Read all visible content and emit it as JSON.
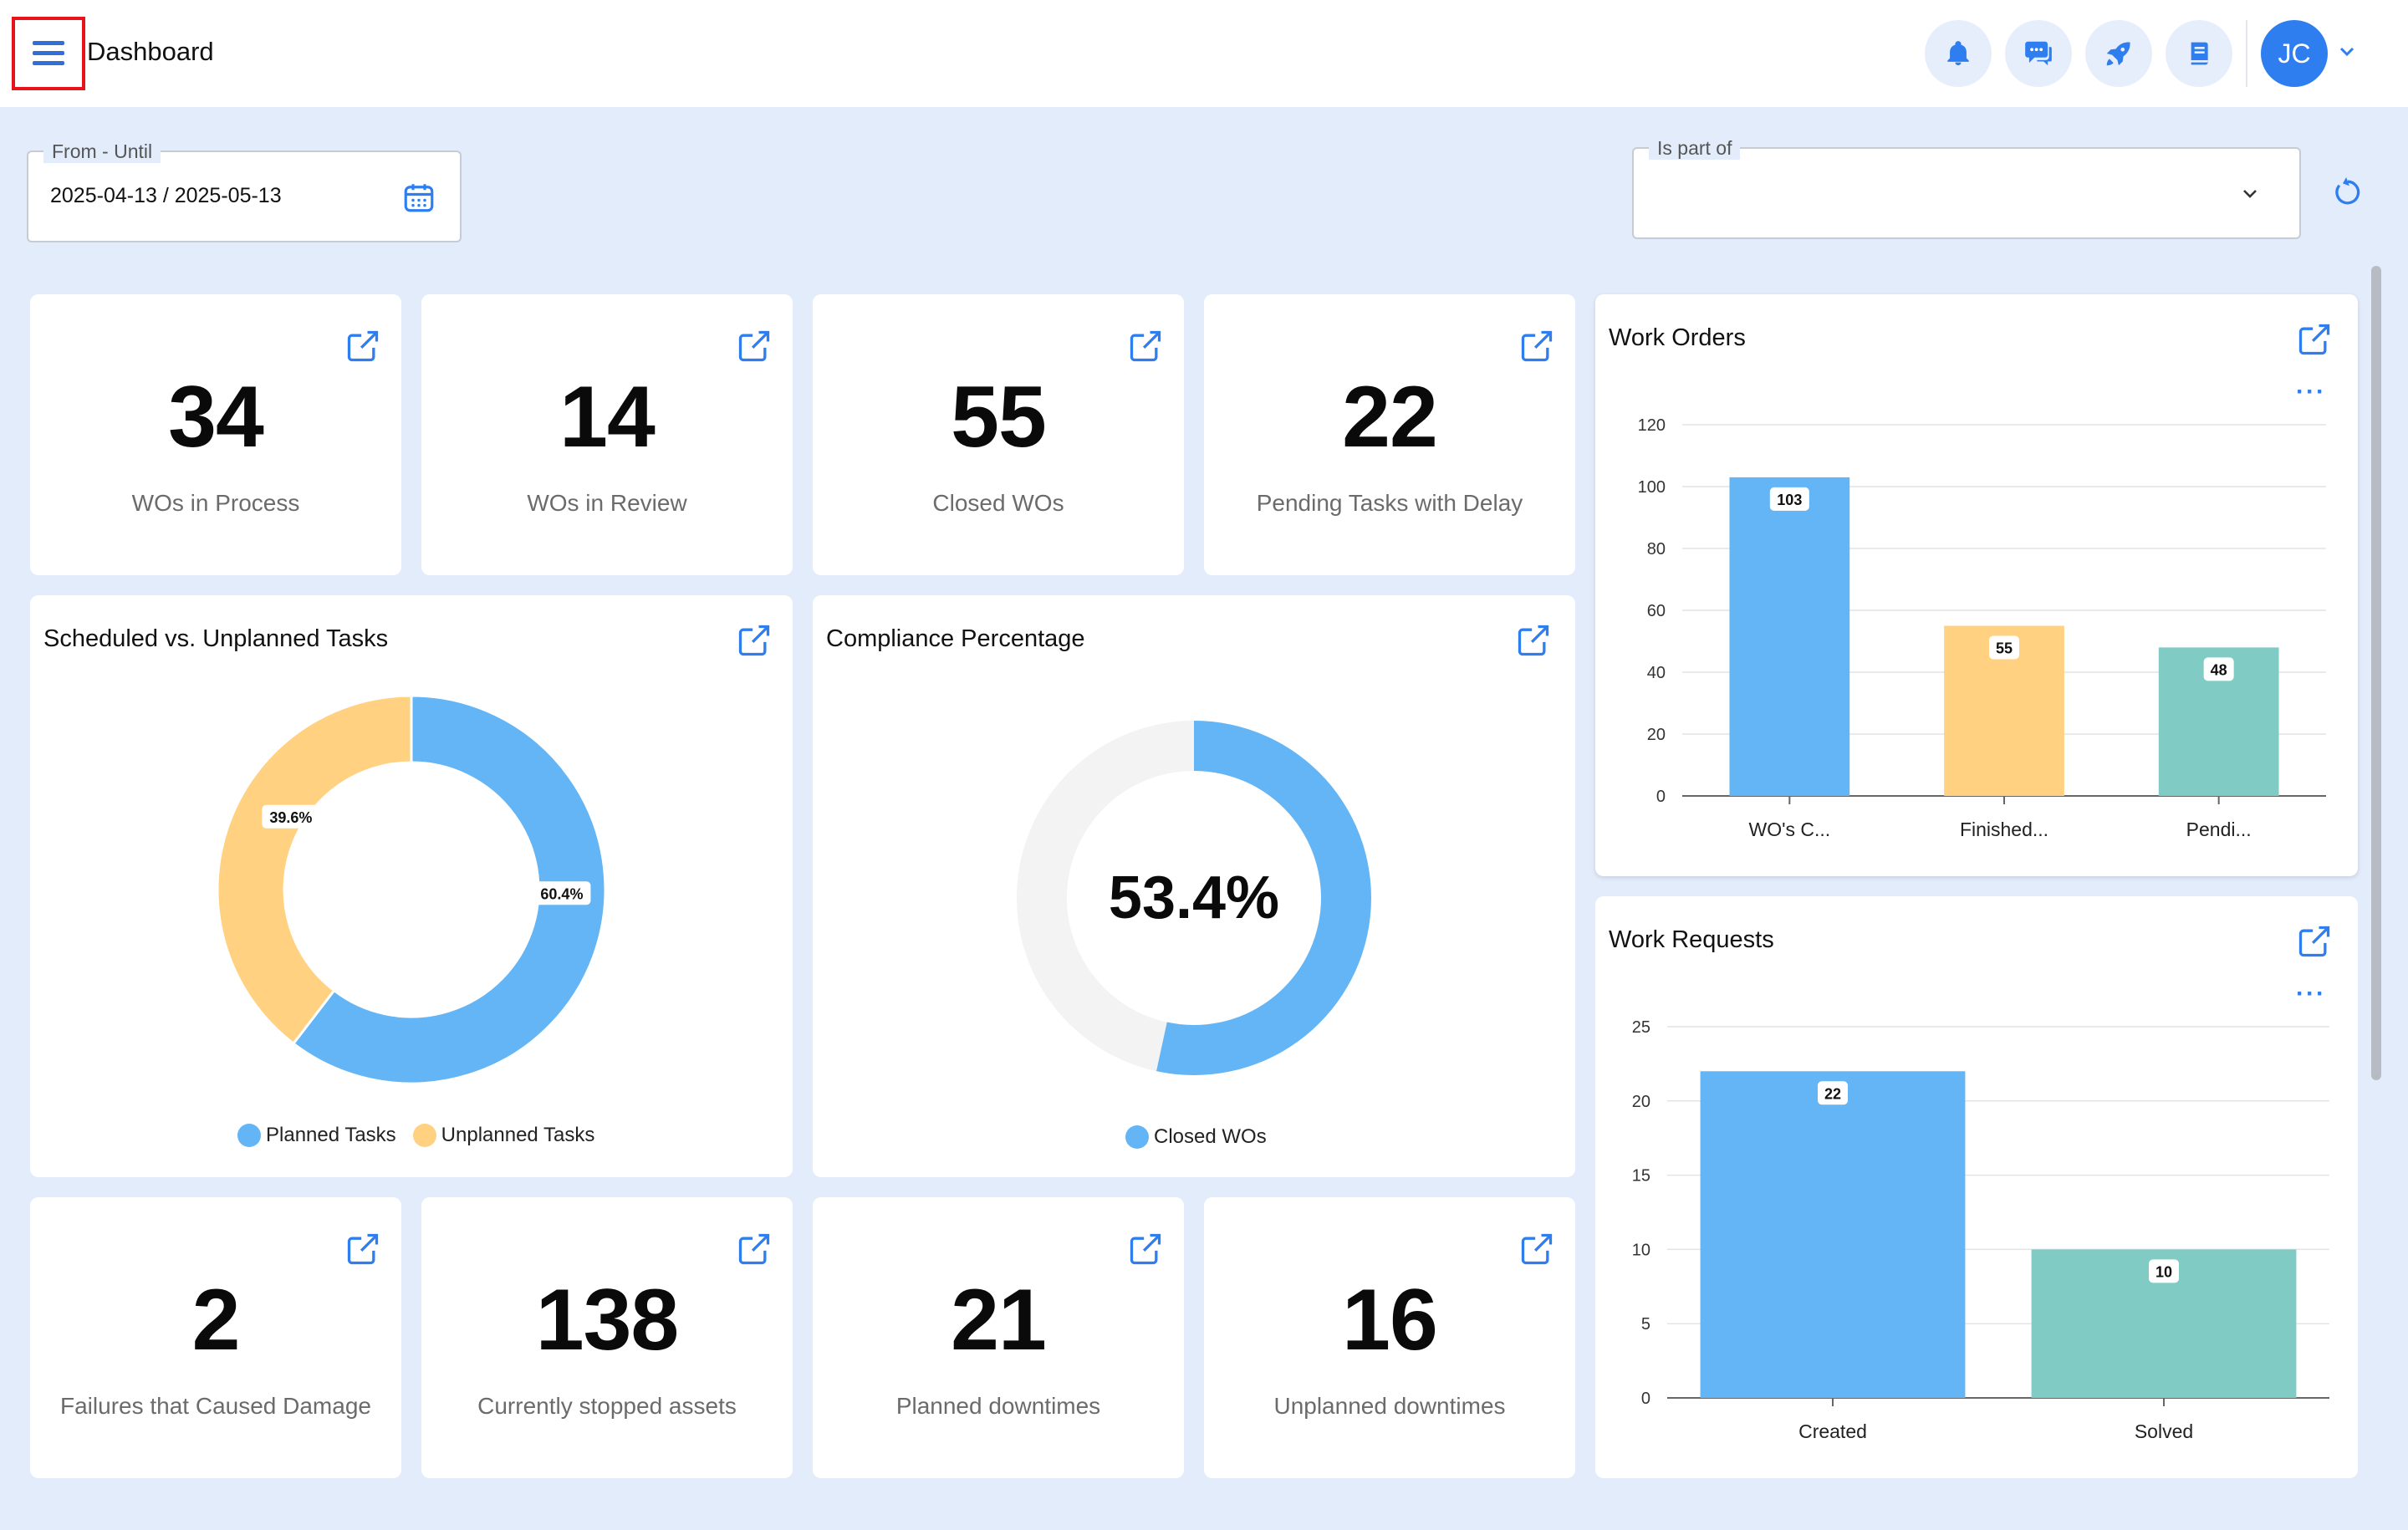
{
  "header": {
    "title": "Dashboard",
    "icons": [
      "menu-icon",
      "bell-icon",
      "chat-icon",
      "rocket-icon",
      "book-icon"
    ],
    "avatar_initials": "JC"
  },
  "filters": {
    "date_range": {
      "label": "From - Until",
      "value": "2025-04-13 / 2025-05-13"
    },
    "is_part_of": {
      "label": "Is part of",
      "value": ""
    }
  },
  "kpis": [
    {
      "value": "34",
      "label": "WOs in Process"
    },
    {
      "value": "14",
      "label": "WOs in Review"
    },
    {
      "value": "55",
      "label": "Closed WOs"
    },
    {
      "value": "22",
      "label": "Pending Tasks with Delay"
    },
    {
      "value": "2",
      "label": "Failures that Caused Damage"
    },
    {
      "value": "138",
      "label": "Currently stopped assets"
    },
    {
      "value": "21",
      "label": "Planned downtimes"
    },
    {
      "value": "16",
      "label": "Unplanned downtimes"
    }
  ],
  "colors": {
    "blue": "#64b5f6",
    "yellow": "#ffd180",
    "teal": "#80cbc4",
    "accent": "#2f7ef0",
    "track": "#f3f3f3"
  },
  "chart_data": [
    {
      "type": "pie",
      "title": "Scheduled vs. Unplanned Tasks",
      "series": [
        {
          "name": "Planned Tasks",
          "value": 60.4,
          "label": "60.4%"
        },
        {
          "name": "Unplanned Tasks",
          "value": 39.6,
          "label": "39.6%"
        }
      ]
    },
    {
      "type": "pie",
      "title": "Compliance Percentage",
      "value": 53.4,
      "center_label": "53.4%",
      "series": [
        {
          "name": "Closed WOs",
          "value": 53.4
        }
      ]
    },
    {
      "type": "bar",
      "title": "Work Orders",
      "categories": [
        "WO's C...",
        "Finished...",
        "Pendi..."
      ],
      "values": [
        103,
        55,
        48
      ],
      "ylim": [
        0,
        120
      ],
      "yticks": [
        "0",
        "20",
        "40",
        "60",
        "80",
        "100",
        "120"
      ],
      "grid": true
    },
    {
      "type": "bar",
      "title": "Work Requests",
      "categories": [
        "Created",
        "Solved"
      ],
      "values": [
        22,
        10
      ],
      "ylim": [
        0,
        25
      ],
      "yticks": [
        "0",
        "5",
        "10",
        "15",
        "20",
        "25"
      ],
      "grid": true
    }
  ]
}
